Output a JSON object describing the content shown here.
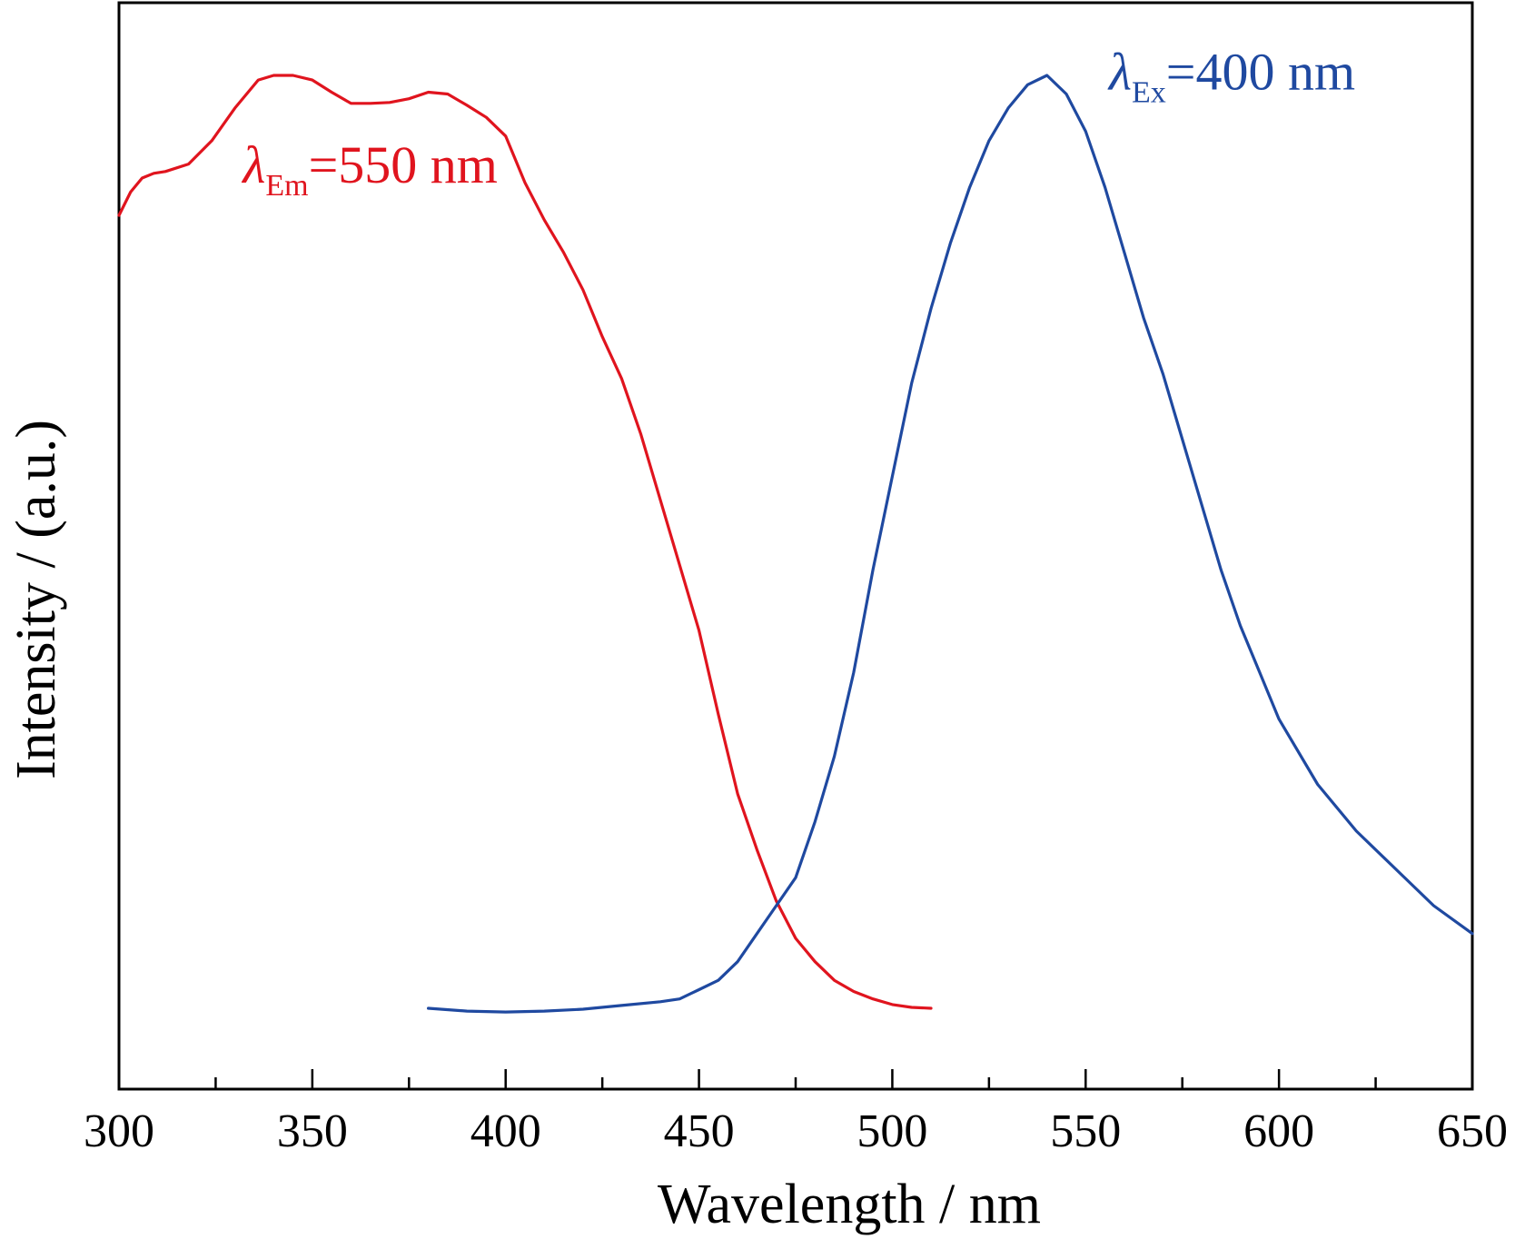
{
  "chart_data": {
    "type": "line",
    "title": "",
    "xlabel": "Wavelength / nm",
    "ylabel": "Intensity / (a.u.)",
    "xlim": [
      300,
      650
    ],
    "ylim": [
      0,
      1.0
    ],
    "xticks": [
      300,
      350,
      400,
      450,
      500,
      550,
      600,
      650
    ],
    "xtick_labels": [
      "300",
      "350",
      "400",
      "450",
      "500",
      "550",
      "600",
      "650"
    ],
    "yticks": [],
    "grid": false,
    "legend": "none",
    "series": [
      {
        "color": "#e0141e",
        "annotation": {
          "symbol": "λ",
          "subscript": "Em",
          "text": "=550 nm",
          "at": [
            332,
            0.885
          ]
        },
        "x": [
          300,
          303,
          306,
          309,
          312,
          318,
          324,
          330,
          336,
          340,
          345,
          350,
          355,
          360,
          365,
          370,
          375,
          380,
          385,
          390,
          395,
          400,
          405,
          410,
          415,
          420,
          425,
          430,
          435,
          440,
          445,
          450,
          455,
          460,
          465,
          470,
          475,
          480,
          485,
          490,
          495,
          500,
          505,
          510
        ],
        "y": [
          0.85,
          0.875,
          0.89,
          0.895,
          0.897,
          0.905,
          0.93,
          0.965,
          0.995,
          1.0,
          1.0,
          0.995,
          0.982,
          0.97,
          0.97,
          0.971,
          0.975,
          0.982,
          0.98,
          0.968,
          0.955,
          0.935,
          0.885,
          0.845,
          0.81,
          0.77,
          0.72,
          0.675,
          0.615,
          0.545,
          0.475,
          0.405,
          0.315,
          0.23,
          0.17,
          0.115,
          0.075,
          0.05,
          0.03,
          0.018,
          0.01,
          0.004,
          0.001,
          0.0
        ],
        "y_note": "Relative intensity normalised to peak = 1"
      },
      {
        "color": "#1f49a0",
        "annotation": {
          "symbol": "λ",
          "subscript": "Ex",
          "text": "=400 nm",
          "at": [
            556,
            0.985
          ]
        },
        "x": [
          380,
          390,
          400,
          410,
          420,
          430,
          440,
          445,
          450,
          455,
          460,
          465,
          470,
          475,
          480,
          485,
          490,
          495,
          500,
          505,
          510,
          515,
          520,
          525,
          530,
          535,
          540,
          545,
          550,
          555,
          560,
          565,
          570,
          575,
          580,
          585,
          590,
          595,
          600,
          610,
          620,
          630,
          640,
          650
        ],
        "y": [
          0.0,
          -0.003,
          -0.004,
          -0.003,
          -0.001,
          0.003,
          0.007,
          0.01,
          0.02,
          0.03,
          0.05,
          0.08,
          0.11,
          0.14,
          0.2,
          0.27,
          0.36,
          0.47,
          0.57,
          0.67,
          0.75,
          0.82,
          0.88,
          0.93,
          0.965,
          0.99,
          1.0,
          0.98,
          0.94,
          0.88,
          0.81,
          0.74,
          0.68,
          0.61,
          0.54,
          0.47,
          0.41,
          0.36,
          0.31,
          0.24,
          0.19,
          0.15,
          0.11,
          0.08
        ]
      }
    ]
  }
}
